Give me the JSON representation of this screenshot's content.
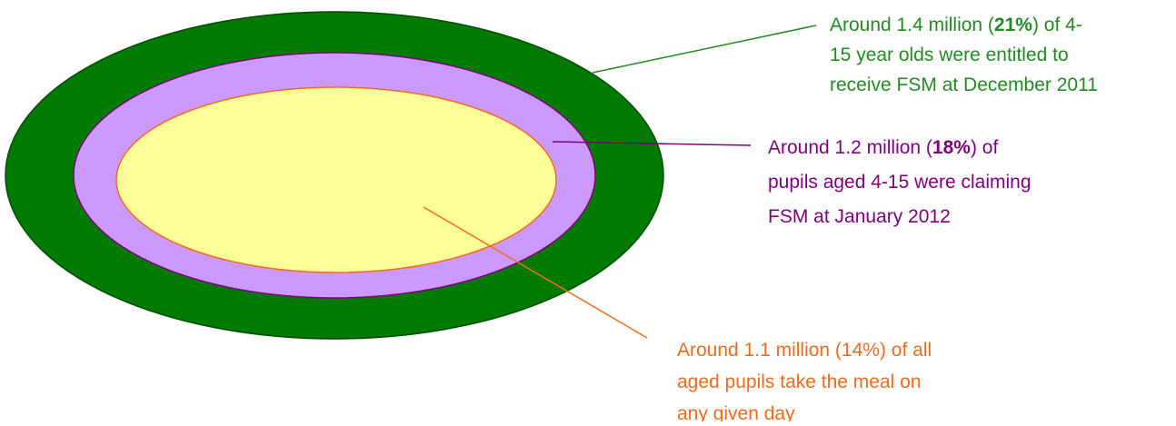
{
  "annotations": [
    {
      "color": "#228b22",
      "lines": [
        [
          {
            "text": "Around 1.4 million ("
          },
          {
            "text": "21%",
            "bold": true
          },
          {
            "text": ") of 4-"
          }
        ],
        [
          {
            "text": "15 year olds were entitled to"
          }
        ],
        [
          {
            "text": "receive FSM at December 2011"
          }
        ]
      ]
    },
    {
      "color": "#800080",
      "lines": [
        [
          {
            "text": "Around 1.2 million ("
          },
          {
            "text": "18%",
            "bold": true
          },
          {
            "text": ") of"
          }
        ],
        [
          {
            "text": "pupils aged 4-15 were claiming"
          }
        ],
        [
          {
            "text": "FSM at January 2012"
          }
        ]
      ]
    },
    {
      "color": "#f26b1d",
      "lines": [
        [
          {
            "text": "Around 1.1 million (14%) of all"
          }
        ],
        [
          {
            "text": "aged pupils take the meal on"
          }
        ],
        [
          {
            "text": "any given day"
          }
        ]
      ]
    }
  ]
}
